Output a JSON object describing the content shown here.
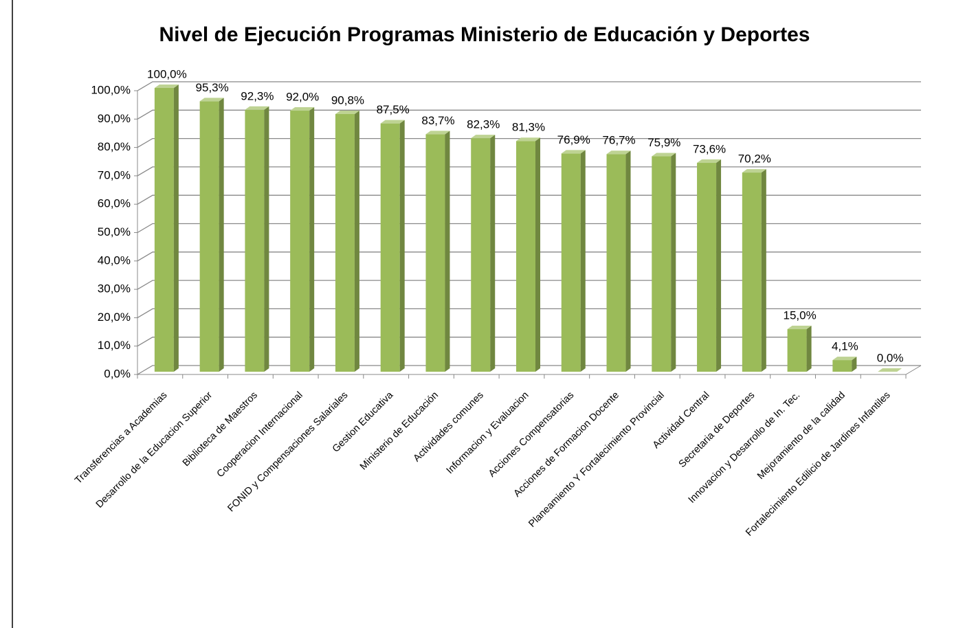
{
  "chart_data": {
    "type": "bar3d",
    "title": "Nivel de Ejecución Programas Ministerio de Educación y Deportes",
    "categories": [
      "Transferencias a Academias",
      "Desarrollo de la Educacion Superior",
      "Biblioteca de Maestros",
      "Cooperacion Internacional",
      "FONID y Compensaciones Salariales",
      "Gestion Educativa",
      "Ministerio de Educación",
      "Actividades comunes",
      "Informacion y Evaluacion",
      "Acciones Compensatorias",
      "Acciones de Formacion Docente",
      "Planeamiento Y Fortalecimiento Provincial",
      "Actividad Central",
      "Secretaria de Deportes",
      "Innovacion y Desarrollo de In. Tec.",
      "Mejoramiento de la calidad",
      "Fortalecimiento Edilicio de Jardines Infantiles"
    ],
    "values": [
      100,
      95.3,
      92.3,
      92,
      90.8,
      87.5,
      83.7,
      82.3,
      81.3,
      76.9,
      76.7,
      75.9,
      73.6,
      70.2,
      15,
      4.1,
      0
    ],
    "value_labels": [
      "100,0%",
      "95,3%",
      "92,3%",
      "92,0%",
      "90,8%",
      "87,5%",
      "83,7%",
      "82,3%",
      "81,3%",
      "76,9%",
      "76,7%",
      "75,9%",
      "73,6%",
      "70,2%",
      "15,0%",
      "4,1%",
      "0,0%"
    ],
    "color": "#9bbb59",
    "ylim": [
      0,
      100
    ],
    "yticks": [
      {
        "value": 0,
        "label": "0,0%"
      },
      {
        "value": 10,
        "label": "10,0%"
      },
      {
        "value": 20,
        "label": "20,0%"
      },
      {
        "value": 30,
        "label": "30,0%"
      },
      {
        "value": 40,
        "label": "40,0%"
      },
      {
        "value": 50,
        "label": "50,0%"
      },
      {
        "value": 60,
        "label": "60,0%"
      },
      {
        "value": 70,
        "label": "70,0%"
      },
      {
        "value": 80,
        "label": "80,0%"
      },
      {
        "value": 90,
        "label": "90,0%"
      },
      {
        "value": 100,
        "label": "100,0%"
      }
    ],
    "grid": true
  }
}
